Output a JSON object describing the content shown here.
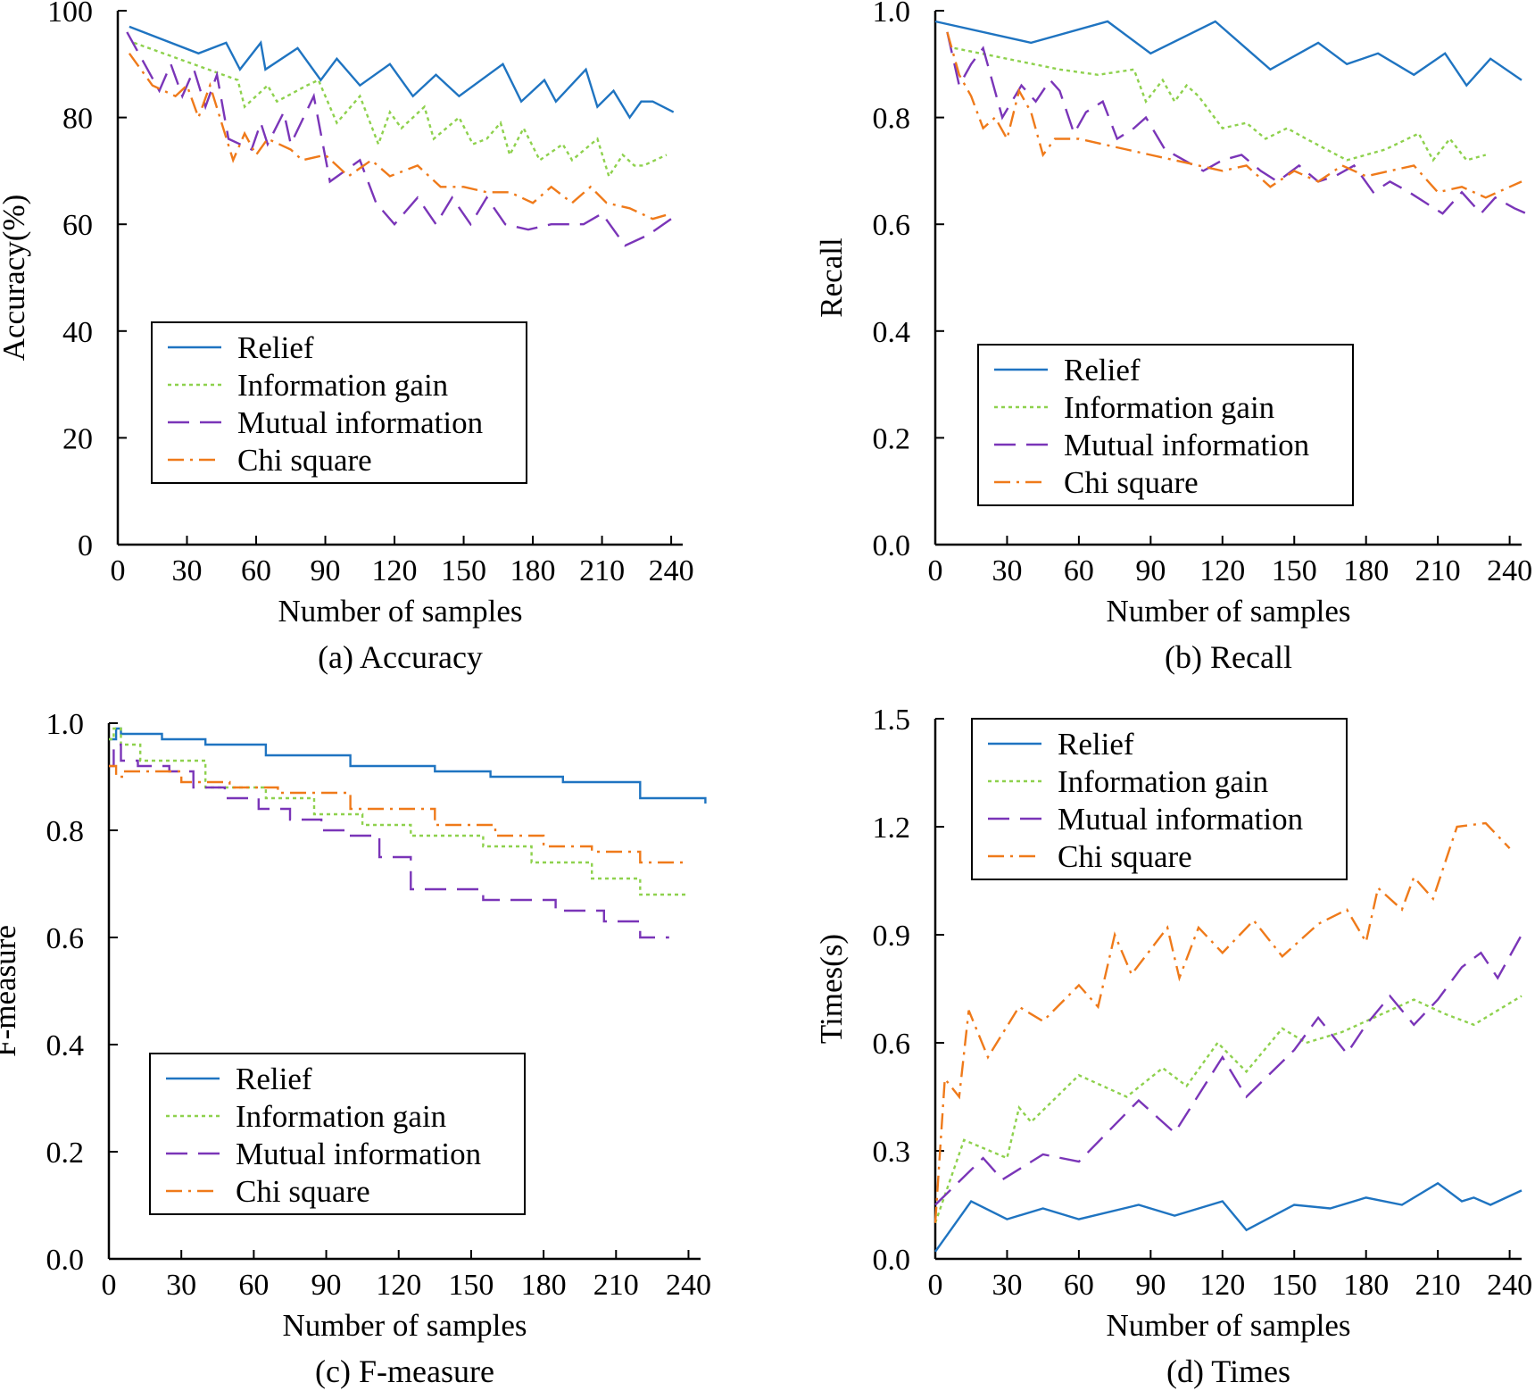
{
  "series_styles": [
    {
      "name": "Relief",
      "color": "#1f74c1",
      "dash": ""
    },
    {
      "name": "Information gain",
      "color": "#8ed14d",
      "dash": "4,4"
    },
    {
      "name": "Mutual information",
      "color": "#7a35b8",
      "dash": "24,12"
    },
    {
      "name": "Chi square",
      "color": "#ef7a1a",
      "dash": "18,7,3,7"
    }
  ],
  "chart_data": [
    {
      "type": "line",
      "caption": "(a) Accuracy",
      "xlabel": "Number of samples",
      "ylabel": "Accuracy(%)",
      "xlim": [
        0,
        245
      ],
      "ylim": [
        0,
        100
      ],
      "xticks": [
        0,
        30,
        60,
        90,
        120,
        150,
        180,
        210,
        240
      ],
      "yticks": [
        0,
        20,
        40,
        60,
        80,
        100
      ],
      "ytick_labels": [
        "0",
        "20",
        "40",
        "60",
        "80",
        "100"
      ],
      "legend": "middle-left",
      "series": [
        {
          "name": "Relief",
          "step": false,
          "x": [
            5,
            35,
            47,
            53,
            62,
            64,
            78,
            88,
            95,
            105,
            118,
            128,
            138,
            148,
            167,
            175,
            185,
            190,
            203,
            208,
            215,
            222,
            227,
            232,
            241
          ],
          "y": [
            97,
            92,
            94,
            89,
            94,
            89,
            93,
            87,
            91,
            86,
            90,
            84,
            88,
            84,
            90,
            83,
            87,
            83,
            89,
            82,
            85,
            80,
            83,
            83,
            81
          ]
        },
        {
          "name": "Information gain",
          "step": false,
          "x": [
            7,
            52,
            55,
            65,
            69,
            82,
            87,
            95,
            105,
            113,
            118,
            123,
            133,
            137,
            148,
            154,
            160,
            166,
            170,
            176,
            183,
            193,
            197,
            208,
            213,
            219,
            224,
            228,
            238
          ],
          "y": [
            94,
            87,
            82,
            86,
            83,
            86,
            87,
            79,
            84,
            75,
            81,
            78,
            82,
            76,
            80,
            75,
            76,
            79,
            73,
            78,
            72,
            75,
            72,
            76,
            69,
            73,
            71,
            71,
            73
          ]
        },
        {
          "name": "Mutual information",
          "step": false,
          "x": [
            4,
            18,
            23,
            28,
            33,
            38,
            43,
            48,
            58,
            62,
            65,
            72,
            75,
            85,
            92,
            105,
            112,
            120,
            130,
            138,
            145,
            153,
            160,
            168,
            178,
            188,
            202,
            210,
            220,
            230,
            240
          ],
          "y": [
            96,
            85,
            90,
            84,
            89,
            82,
            88,
            76,
            74,
            79,
            75,
            81,
            75,
            84,
            68,
            72,
            64,
            60,
            65,
            60,
            65,
            60,
            65,
            60,
            59,
            60,
            60,
            62,
            56,
            58,
            61
          ]
        },
        {
          "name": "Chi square",
          "step": false,
          "x": [
            5,
            15,
            25,
            30,
            35,
            40,
            45,
            50,
            55,
            60,
            65,
            75,
            80,
            90,
            100,
            110,
            118,
            130,
            140,
            150,
            160,
            170,
            180,
            188,
            197,
            205,
            212,
            222,
            232,
            240
          ],
          "y": [
            92,
            86,
            84,
            86,
            80,
            86,
            79,
            72,
            77,
            73,
            76,
            74,
            72,
            73,
            69,
            72,
            69,
            71,
            67,
            67,
            66,
            66,
            64,
            67,
            64,
            67,
            64,
            63,
            61,
            62
          ]
        }
      ]
    },
    {
      "type": "line",
      "caption": "(b) Recall",
      "xlabel": "Number of samples",
      "ylabel": "Recall",
      "xlim": [
        0,
        245
      ],
      "ylim": [
        0,
        1
      ],
      "xticks": [
        0,
        30,
        60,
        90,
        120,
        150,
        180,
        210,
        240
      ],
      "yticks": [
        0,
        0.2,
        0.4,
        0.6,
        0.8,
        1.0
      ],
      "ytick_labels": [
        "0.0",
        "0.2",
        "0.4",
        "0.6",
        "0.8",
        "1.0"
      ],
      "legend": "middle-left",
      "series": [
        {
          "name": "Relief",
          "step": false,
          "x": [
            0,
            40,
            72,
            90,
            117,
            140,
            160,
            172,
            185,
            200,
            213,
            222,
            232,
            245
          ],
          "y": [
            0.98,
            0.94,
            0.98,
            0.92,
            0.98,
            0.89,
            0.94,
            0.9,
            0.92,
            0.88,
            0.92,
            0.86,
            0.91,
            0.87
          ]
        },
        {
          "name": "Information gain",
          "step": false,
          "x": [
            8,
            30,
            52,
            68,
            83,
            88,
            95,
            100,
            105,
            110,
            120,
            130,
            138,
            147,
            155,
            172,
            188,
            202,
            208,
            215,
            222,
            230
          ],
          "y": [
            0.93,
            0.91,
            0.89,
            0.88,
            0.89,
            0.83,
            0.87,
            0.83,
            0.86,
            0.84,
            0.78,
            0.79,
            0.76,
            0.78,
            0.76,
            0.72,
            0.74,
            0.77,
            0.72,
            0.76,
            0.72,
            0.73
          ]
        },
        {
          "name": "Mutual information",
          "step": false,
          "x": [
            5,
            10,
            15,
            20,
            28,
            36,
            42,
            48,
            52,
            58,
            63,
            70,
            76,
            83,
            88,
            96,
            104,
            112,
            120,
            128,
            136,
            143,
            152,
            160,
            167,
            175,
            183,
            190,
            198,
            205,
            212,
            220,
            228,
            234,
            242,
            247
          ],
          "y": [
            0.96,
            0.86,
            0.9,
            0.93,
            0.8,
            0.86,
            0.83,
            0.87,
            0.85,
            0.77,
            0.81,
            0.83,
            0.76,
            0.78,
            0.8,
            0.74,
            0.72,
            0.7,
            0.72,
            0.73,
            0.7,
            0.68,
            0.71,
            0.68,
            0.69,
            0.71,
            0.66,
            0.68,
            0.66,
            0.64,
            0.62,
            0.66,
            0.62,
            0.65,
            0.63,
            0.62
          ]
        },
        {
          "name": "Chi square",
          "step": false,
          "x": [
            5,
            10,
            15,
            20,
            25,
            30,
            35,
            40,
            45,
            50,
            60,
            70,
            80,
            90,
            100,
            110,
            120,
            130,
            140,
            150,
            160,
            170,
            180,
            190,
            200,
            210,
            220,
            230,
            240,
            245
          ],
          "y": [
            0.96,
            0.88,
            0.84,
            0.78,
            0.8,
            0.76,
            0.85,
            0.81,
            0.73,
            0.76,
            0.76,
            0.75,
            0.74,
            0.73,
            0.72,
            0.71,
            0.7,
            0.71,
            0.67,
            0.7,
            0.68,
            0.71,
            0.69,
            0.7,
            0.71,
            0.66,
            0.67,
            0.65,
            0.67,
            0.68
          ]
        }
      ]
    },
    {
      "type": "line",
      "caption": "(c) F-measure",
      "xlabel": "Number of samples",
      "ylabel": "F-measure",
      "xlim": [
        0,
        245
      ],
      "ylim": [
        0,
        1
      ],
      "xticks": [
        0,
        30,
        60,
        90,
        120,
        150,
        180,
        210,
        240
      ],
      "yticks": [
        0,
        0.2,
        0.4,
        0.6,
        0.8,
        1.0
      ],
      "ytick_labels": [
        "0.0",
        "0.2",
        "0.4",
        "0.6",
        "0.8",
        "1.0"
      ],
      "legend": "bottom-left",
      "series": [
        {
          "name": "Relief",
          "step": true,
          "x": [
            0,
            3,
            5,
            22,
            40,
            65,
            100,
            135,
            158,
            188,
            220,
            247
          ],
          "y": [
            0.97,
            0.99,
            0.98,
            0.97,
            0.96,
            0.94,
            0.92,
            0.91,
            0.9,
            0.89,
            0.86,
            0.85
          ]
        },
        {
          "name": "Information gain",
          "step": true,
          "x": [
            0,
            2,
            5,
            13,
            40,
            65,
            85,
            105,
            125,
            155,
            175,
            200,
            220,
            240
          ],
          "y": [
            0.97,
            0.99,
            0.96,
            0.93,
            0.88,
            0.86,
            0.83,
            0.81,
            0.79,
            0.77,
            0.74,
            0.71,
            0.68,
            0.68
          ]
        },
        {
          "name": "Mutual information",
          "step": true,
          "x": [
            0,
            2,
            5,
            12,
            25,
            35,
            48,
            62,
            75,
            88,
            98,
            112,
            125,
            155,
            185,
            205,
            220,
            232
          ],
          "y": [
            0.92,
            0.96,
            0.93,
            0.92,
            0.91,
            0.88,
            0.86,
            0.84,
            0.82,
            0.8,
            0.79,
            0.75,
            0.69,
            0.67,
            0.65,
            0.63,
            0.6,
            0.6
          ]
        },
        {
          "name": "Chi square",
          "step": true,
          "x": [
            0,
            3,
            6,
            30,
            50,
            70,
            100,
            135,
            160,
            180,
            200,
            220,
            240
          ],
          "y": [
            0.92,
            0.9,
            0.91,
            0.89,
            0.88,
            0.87,
            0.84,
            0.81,
            0.79,
            0.77,
            0.76,
            0.74,
            0.74
          ]
        }
      ]
    },
    {
      "type": "line",
      "caption": "(d) Times",
      "xlabel": "Number of samples",
      "ylabel": "Times(s)",
      "xlim": [
        0,
        245
      ],
      "ylim": [
        0,
        1.5
      ],
      "xticks": [
        0,
        30,
        60,
        90,
        120,
        150,
        180,
        210,
        240
      ],
      "yticks": [
        0,
        0.3,
        0.6,
        0.9,
        1.2,
        1.5
      ],
      "ytick_labels": [
        "0.0",
        "0.3",
        "0.6",
        "0.9",
        "1.2",
        "1.5"
      ],
      "legend": "top-left",
      "series": [
        {
          "name": "Relief",
          "step": false,
          "x": [
            0,
            15,
            30,
            45,
            60,
            85,
            100,
            120,
            130,
            150,
            165,
            180,
            195,
            210,
            220,
            225,
            232,
            245
          ],
          "y": [
            0.02,
            0.16,
            0.11,
            0.14,
            0.11,
            0.15,
            0.12,
            0.16,
            0.08,
            0.15,
            0.14,
            0.17,
            0.15,
            0.21,
            0.16,
            0.17,
            0.15,
            0.19
          ]
        },
        {
          "name": "Information gain",
          "step": false,
          "x": [
            0,
            12,
            30,
            35,
            40,
            60,
            80,
            95,
            105,
            118,
            130,
            145,
            155,
            170,
            190,
            200,
            213,
            225,
            245
          ],
          "y": [
            0.1,
            0.33,
            0.28,
            0.42,
            0.38,
            0.51,
            0.45,
            0.53,
            0.48,
            0.6,
            0.52,
            0.64,
            0.6,
            0.63,
            0.69,
            0.72,
            0.68,
            0.65,
            0.73
          ]
        },
        {
          "name": "Mutual information",
          "step": false,
          "x": [
            0,
            20,
            28,
            45,
            60,
            85,
            100,
            120,
            130,
            150,
            160,
            172,
            180,
            190,
            200,
            210,
            220,
            228,
            235,
            245
          ],
          "y": [
            0.15,
            0.28,
            0.22,
            0.29,
            0.27,
            0.44,
            0.35,
            0.56,
            0.45,
            0.58,
            0.67,
            0.57,
            0.65,
            0.73,
            0.65,
            0.72,
            0.81,
            0.85,
            0.78,
            0.9
          ]
        },
        {
          "name": "Chi square",
          "step": false,
          "x": [
            0,
            4,
            10,
            14,
            22,
            35,
            45,
            60,
            68,
            75,
            82,
            97,
            102,
            110,
            120,
            133,
            145,
            160,
            172,
            180,
            185,
            195,
            200,
            208,
            212,
            218,
            230,
            240
          ],
          "y": [
            0.1,
            0.5,
            0.45,
            0.69,
            0.56,
            0.7,
            0.66,
            0.76,
            0.7,
            0.9,
            0.79,
            0.92,
            0.78,
            0.92,
            0.85,
            0.94,
            0.84,
            0.93,
            0.97,
            0.88,
            1.03,
            0.97,
            1.06,
            1.0,
            1.08,
            1.2,
            1.21,
            1.14
          ]
        }
      ]
    }
  ]
}
